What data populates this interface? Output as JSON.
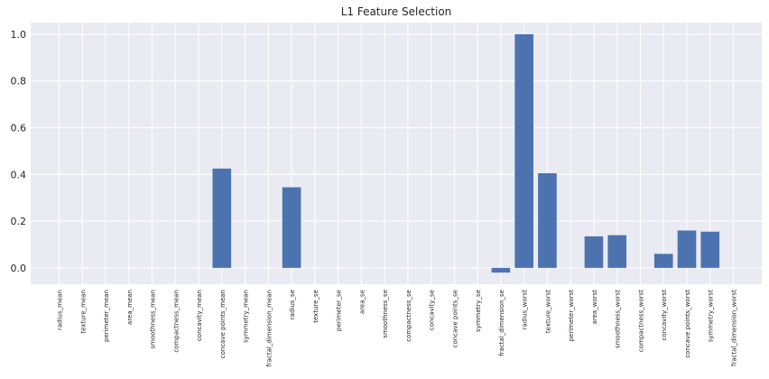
{
  "chart_data": {
    "type": "bar",
    "title": "L1 Feature Selection",
    "xlabel": "",
    "ylabel": "",
    "ylim": [
      -0.07,
      1.05
    ],
    "yticks": [
      0.0,
      0.2,
      0.4,
      0.6,
      0.8,
      1.0
    ],
    "ytick_labels": [
      "0.0",
      "0.2",
      "0.4",
      "0.6",
      "0.8",
      "1.0"
    ],
    "grid": true,
    "colors": {
      "bar": "#4c72b0",
      "plot_bg": "#eaeaf2",
      "grid": "#ffffff"
    },
    "categories": [
      "radius_mean",
      "texture_mean",
      "perimeter_mean",
      "area_mean",
      "smoothness_mean",
      "compactness_mean",
      "concavity_mean",
      "concave points_mean",
      "symmetry_mean",
      "fractal_dimension_mean",
      "radius_se",
      "texture_se",
      "perimeter_se",
      "area_se",
      "smoothness_se",
      "compactness_se",
      "concavity_se",
      "concave points_se",
      "symmetry_se",
      "fractal_dimension_se",
      "radius_worst",
      "texture_worst",
      "perimeter_worst",
      "area_worst",
      "smoothness_worst",
      "compactness_worst",
      "concavity_worst",
      "concave points_worst",
      "symmetry_worst",
      "fractal_dimension_worst"
    ],
    "values": [
      0,
      0,
      0,
      0,
      0,
      0,
      0,
      0.425,
      0,
      0,
      0.345,
      0,
      0,
      0,
      0,
      0,
      0,
      0,
      0,
      -0.02,
      1.0,
      0.405,
      0,
      0.135,
      0.14,
      0,
      0.06,
      0.16,
      0.155,
      0
    ]
  }
}
